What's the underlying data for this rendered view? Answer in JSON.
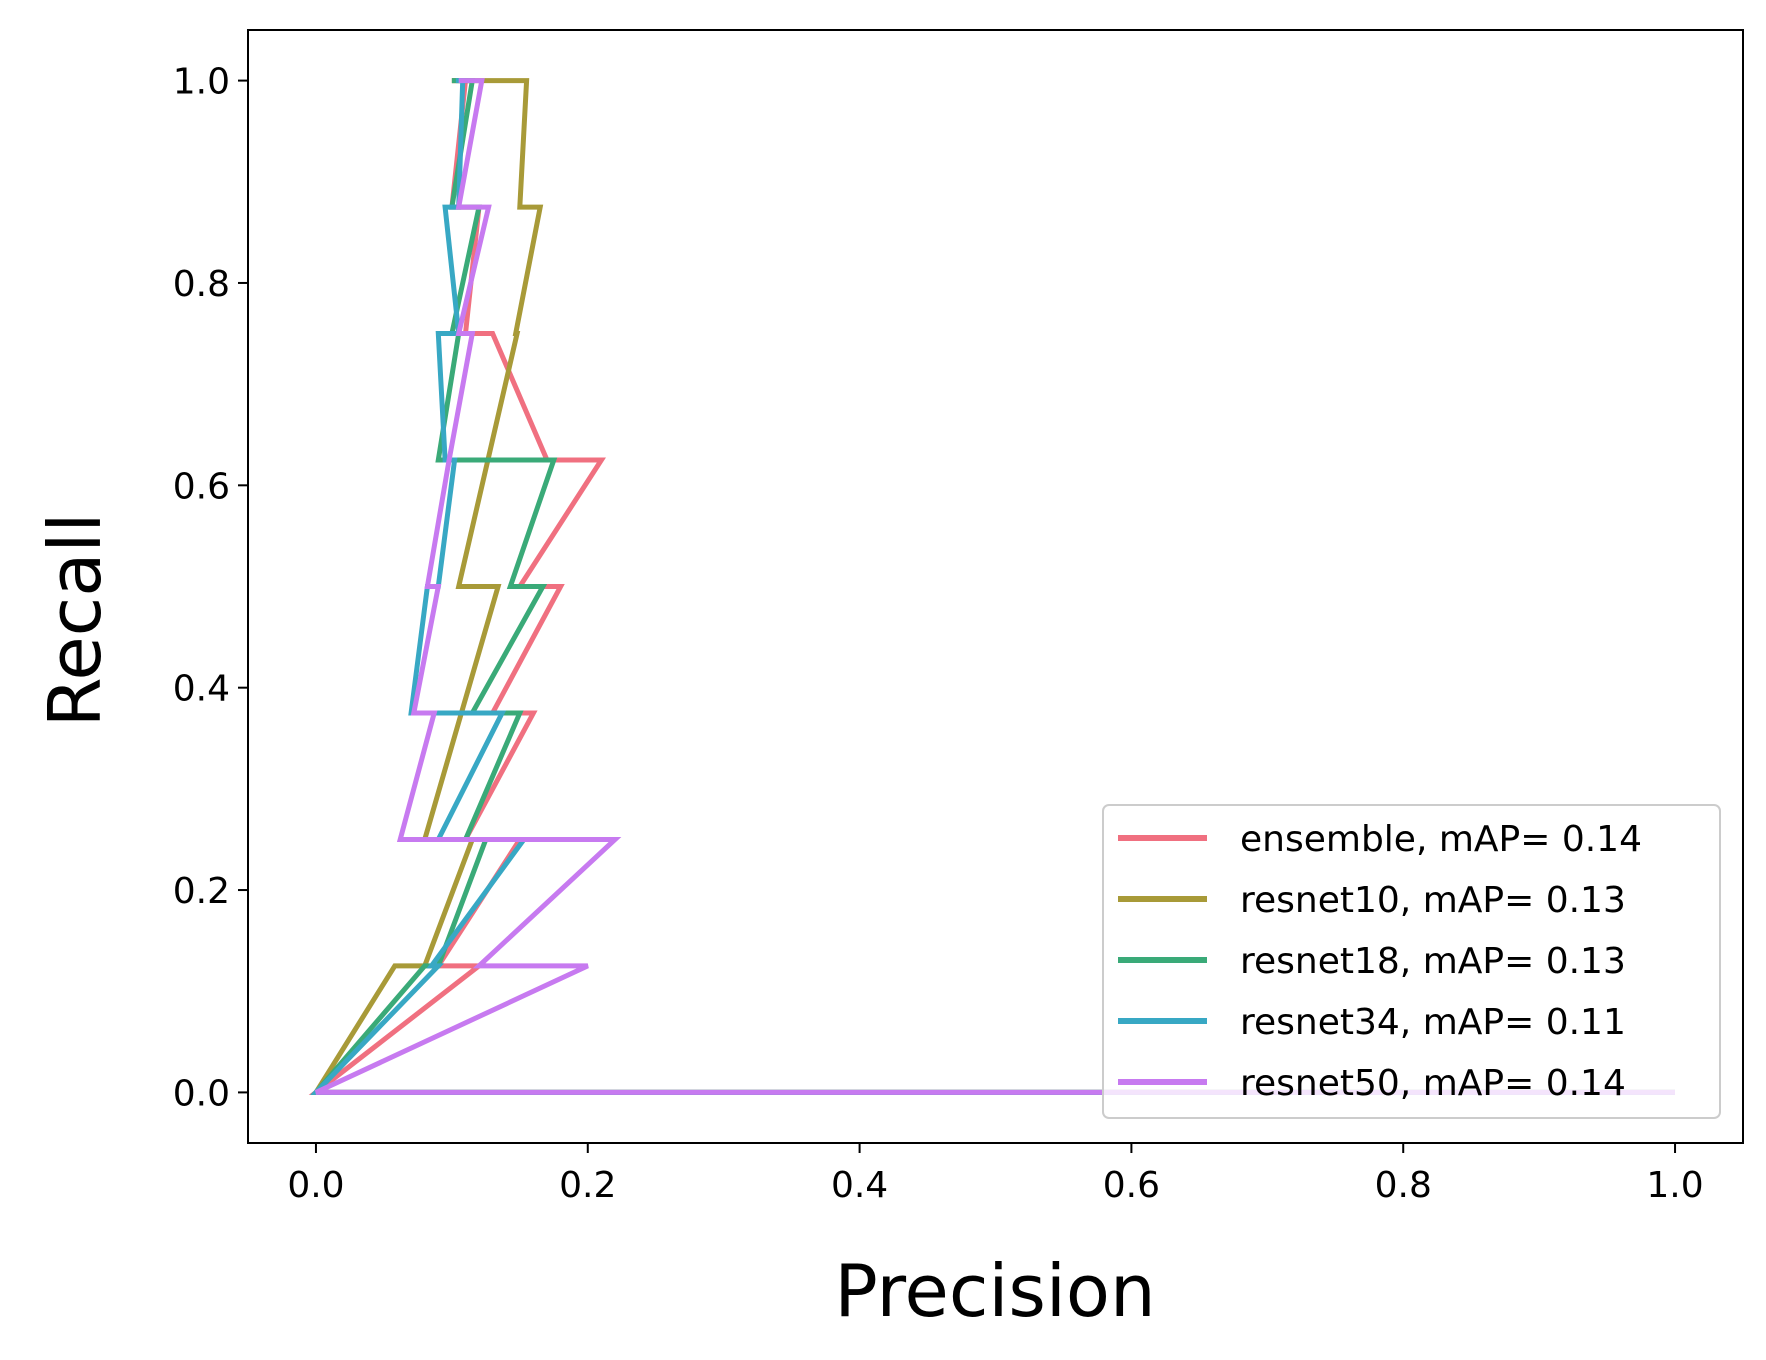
{
  "chart_data": {
    "type": "line",
    "xlabel": "Precision",
    "ylabel": "Recall",
    "xlim": [
      -0.05,
      1.05
    ],
    "ylim": [
      -0.05,
      1.05
    ],
    "xticks": [
      0.0,
      0.2,
      0.4,
      0.6,
      0.8,
      1.0
    ],
    "yticks": [
      0.0,
      0.2,
      0.4,
      0.6,
      0.8,
      1.0
    ],
    "xtick_labels": [
      "0.0",
      "0.2",
      "0.4",
      "0.6",
      "0.8",
      "1.0"
    ],
    "ytick_labels": [
      "0.0",
      "0.2",
      "0.4",
      "0.6",
      "0.8",
      "1.0"
    ],
    "grid": false,
    "legend_position": "bottom-right",
    "series": [
      {
        "name": "ensemble, mAP= 0.14",
        "color": "#f07080",
        "points": [
          [
            1.0,
            0.0
          ],
          [
            0.0,
            0.0
          ],
          [
            0.12,
            0.125
          ],
          [
            0.09,
            0.125
          ],
          [
            0.15,
            0.25
          ],
          [
            0.11,
            0.25
          ],
          [
            0.16,
            0.375
          ],
          [
            0.13,
            0.375
          ],
          [
            0.18,
            0.5
          ],
          [
            0.15,
            0.5
          ],
          [
            0.21,
            0.625
          ],
          [
            0.17,
            0.625
          ],
          [
            0.13,
            0.75
          ],
          [
            0.11,
            0.75
          ],
          [
            0.12,
            0.875
          ],
          [
            0.1,
            0.875
          ],
          [
            0.11,
            1.0
          ],
          [
            0.1,
            1.0
          ]
        ]
      },
      {
        "name": "resnet10, mAP= 0.13",
        "color": "#a89a38",
        "points": [
          [
            1.0,
            0.0
          ],
          [
            0.0,
            0.0
          ],
          [
            0.058,
            0.125
          ],
          [
            0.08,
            0.125
          ],
          [
            0.115,
            0.25
          ],
          [
            0.08,
            0.25
          ],
          [
            0.134,
            0.5
          ],
          [
            0.105,
            0.5
          ],
          [
            0.148,
            0.75
          ],
          [
            0.147,
            0.75
          ],
          [
            0.165,
            0.875
          ],
          [
            0.15,
            0.875
          ],
          [
            0.155,
            1.0
          ],
          [
            0.1,
            1.0
          ]
        ]
      },
      {
        "name": "resnet18, mAP= 0.13",
        "color": "#3aaa78",
        "points": [
          [
            1.0,
            0.0
          ],
          [
            0.0,
            0.0
          ],
          [
            0.08,
            0.125
          ],
          [
            0.09,
            0.125
          ],
          [
            0.125,
            0.25
          ],
          [
            0.11,
            0.25
          ],
          [
            0.15,
            0.375
          ],
          [
            0.115,
            0.375
          ],
          [
            0.167,
            0.5
          ],
          [
            0.143,
            0.5
          ],
          [
            0.175,
            0.625
          ],
          [
            0.09,
            0.625
          ],
          [
            0.105,
            0.75
          ],
          [
            0.1,
            0.75
          ],
          [
            0.12,
            0.875
          ],
          [
            0.1,
            0.875
          ],
          [
            0.115,
            1.0
          ],
          [
            0.1,
            1.0
          ]
        ]
      },
      {
        "name": "resnet34, mAP= 0.11",
        "color": "#38a8c4",
        "points": [
          [
            1.0,
            0.0
          ],
          [
            0.0,
            0.0
          ],
          [
            0.09,
            0.125
          ],
          [
            0.085,
            0.125
          ],
          [
            0.153,
            0.25
          ],
          [
            0.09,
            0.25
          ],
          [
            0.137,
            0.375
          ],
          [
            0.07,
            0.375
          ],
          [
            0.082,
            0.5
          ],
          [
            0.09,
            0.5
          ],
          [
            0.102,
            0.625
          ],
          [
            0.095,
            0.625
          ],
          [
            0.09,
            0.75
          ],
          [
            0.105,
            0.75
          ],
          [
            0.095,
            0.875
          ],
          [
            0.105,
            0.875
          ],
          [
            0.108,
            1.0
          ],
          [
            0.103,
            1.0
          ]
        ]
      },
      {
        "name": "resnet50, mAP= 0.14",
        "color": "#c77af0",
        "points": [
          [
            1.0,
            0.0
          ],
          [
            0.0,
            0.0
          ],
          [
            0.2,
            0.125
          ],
          [
            0.12,
            0.125
          ],
          [
            0.22,
            0.25
          ],
          [
            0.062,
            0.25
          ],
          [
            0.087,
            0.375
          ],
          [
            0.072,
            0.375
          ],
          [
            0.09,
            0.5
          ],
          [
            0.082,
            0.5
          ],
          [
            0.098,
            0.625
          ],
          [
            0.115,
            0.75
          ],
          [
            0.105,
            0.75
          ],
          [
            0.127,
            0.875
          ],
          [
            0.105,
            0.875
          ],
          [
            0.122,
            1.0
          ],
          [
            0.105,
            1.0
          ]
        ]
      }
    ]
  }
}
